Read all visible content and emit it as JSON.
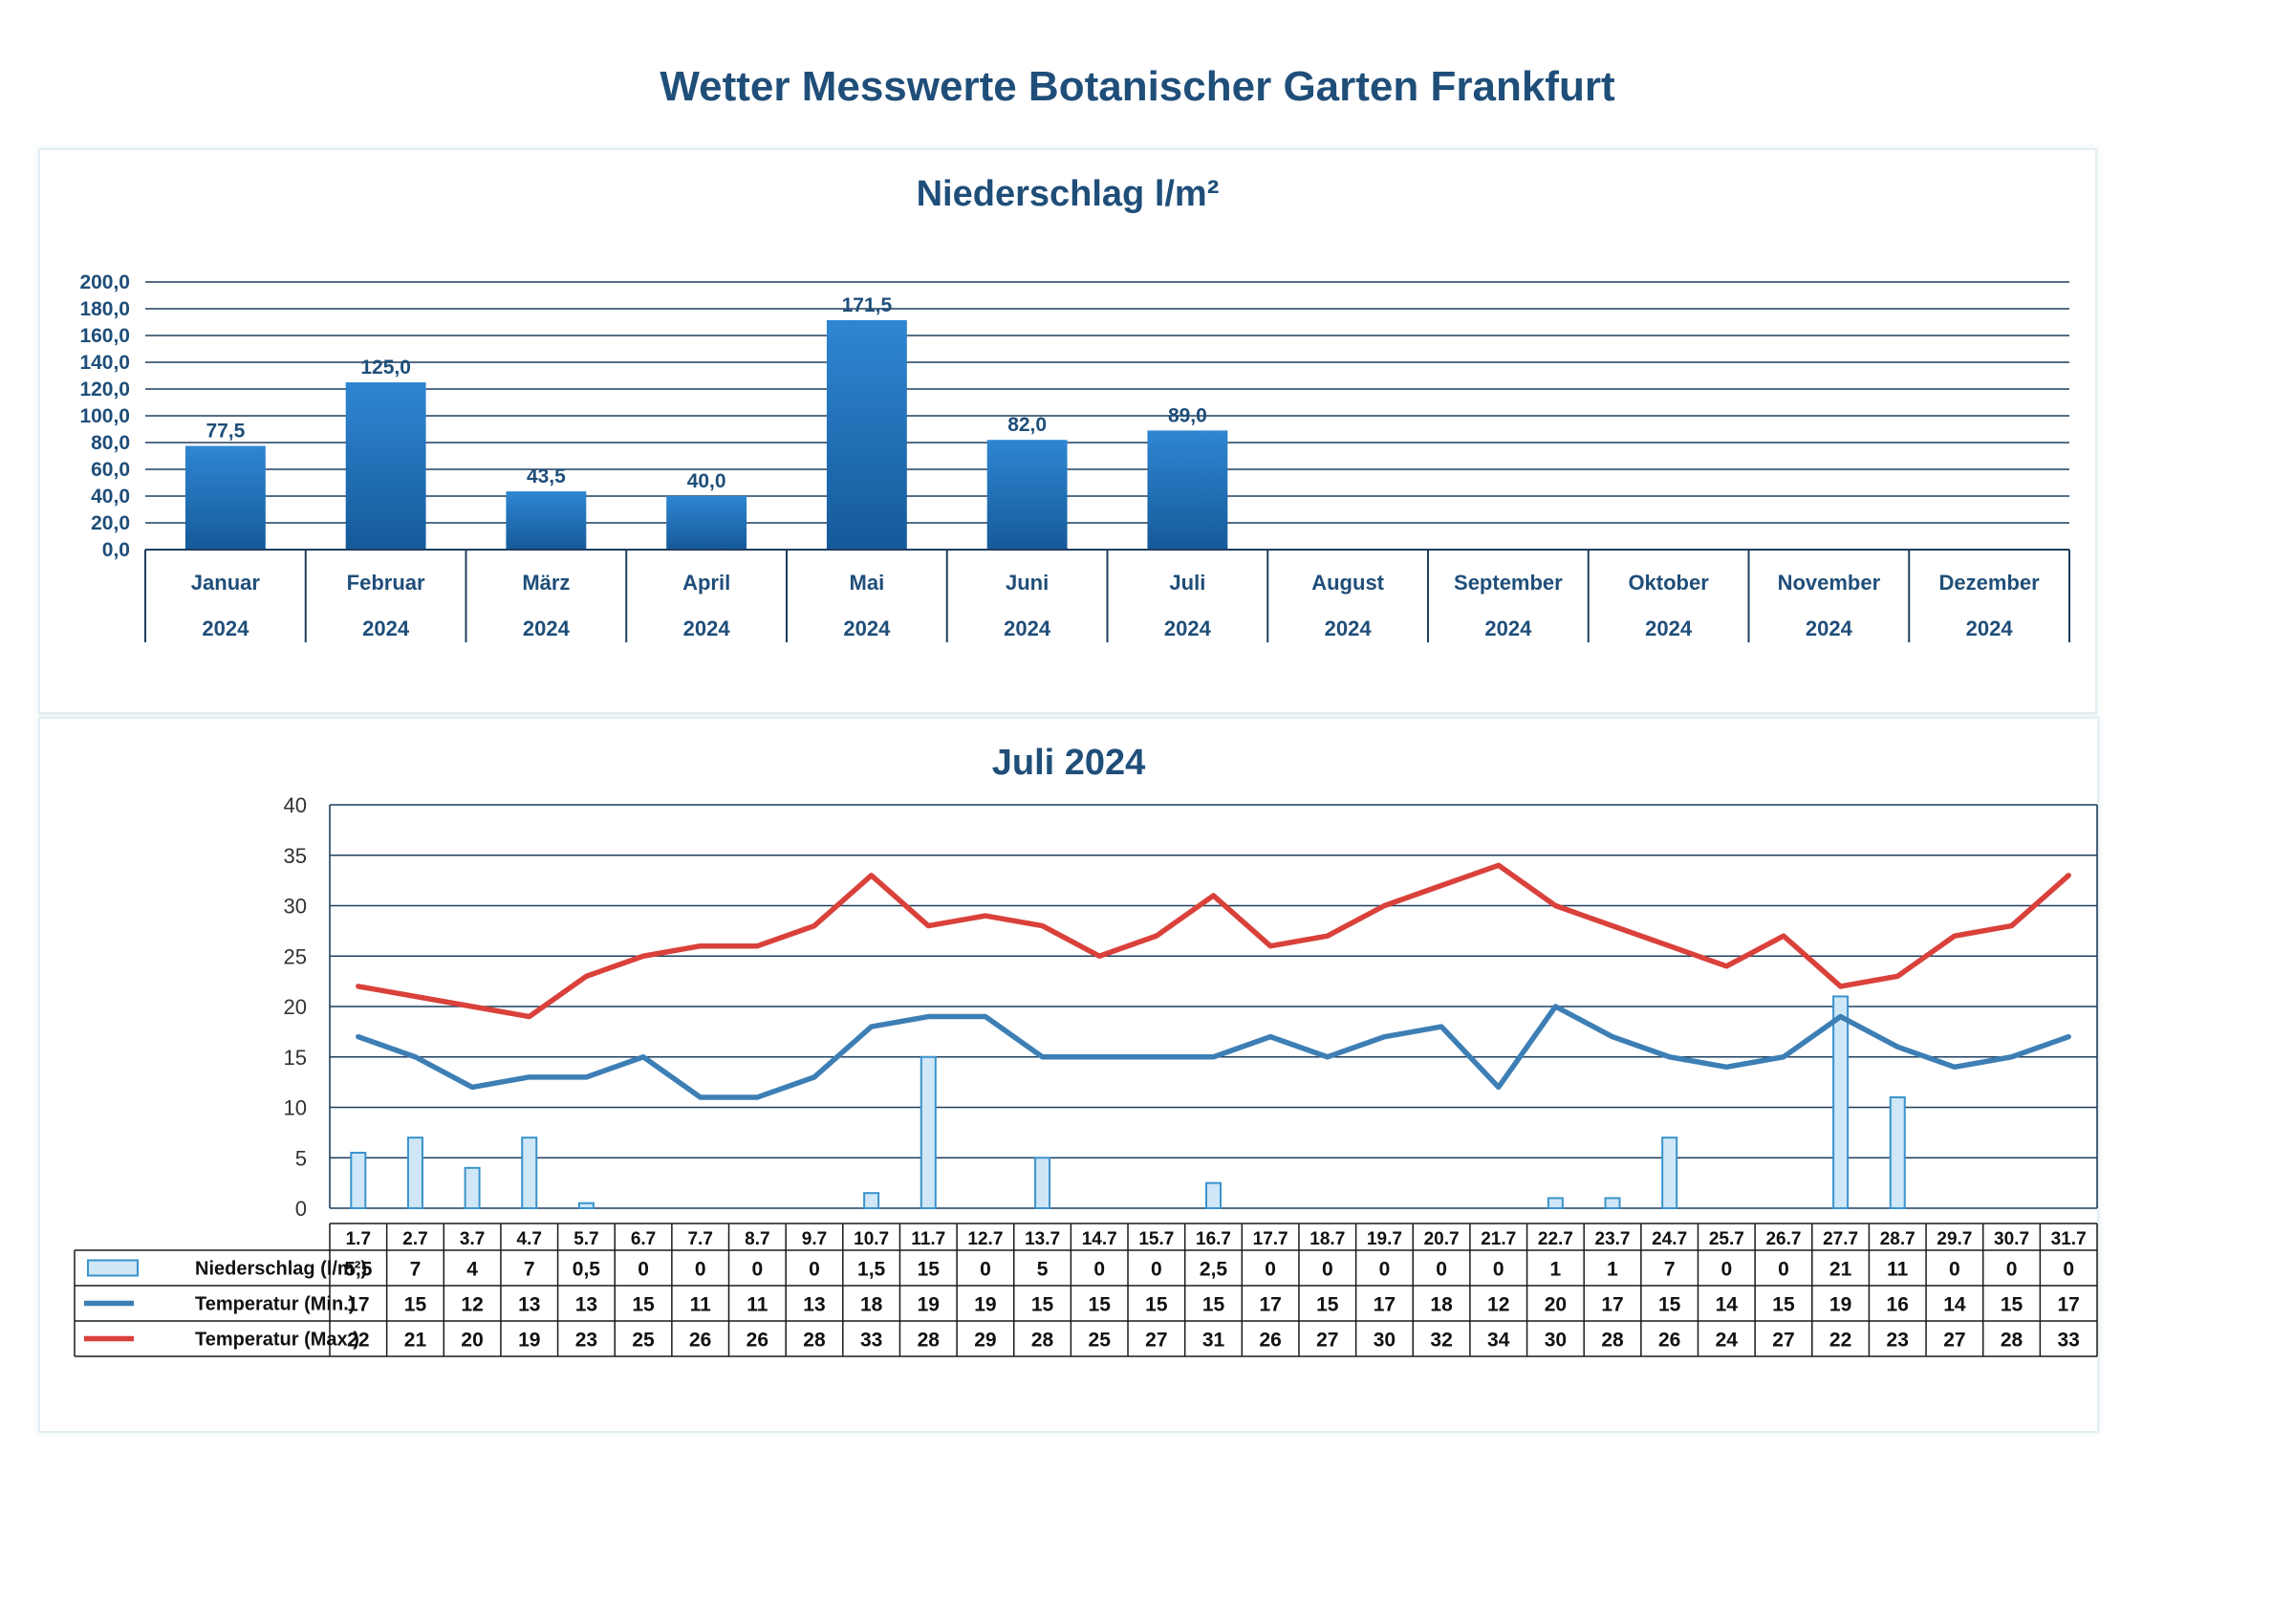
{
  "page": {
    "title": "Wetter Messwerte Botanischer Garten Frankfurt"
  },
  "colors": {
    "title": "#1f4e79",
    "bar_top": "#2f86d2",
    "bar_bottom": "#155a9a",
    "gridline": "#1f3f5f",
    "rain_fill": "#cfe7f7",
    "rain_stroke": "#3a93cc",
    "min_line": "#3d7fb5",
    "max_line": "#d9413a"
  },
  "chart_data": [
    {
      "type": "bar",
      "title": "Niederschlag l/m²",
      "categories": [
        "Januar",
        "Februar",
        "März",
        "April",
        "Mai",
        "Juni",
        "Juli",
        "August",
        "September",
        "Oktober",
        "November",
        "Dezember"
      ],
      "category_years": [
        "2024",
        "2024",
        "2024",
        "2024",
        "2024",
        "2024",
        "2024",
        "2024",
        "2024",
        "2024",
        "2024",
        "2024"
      ],
      "values": [
        77.5,
        125.0,
        43.5,
        40.0,
        171.5,
        82.0,
        89.0,
        null,
        null,
        null,
        null,
        null
      ],
      "value_labels": [
        "77,5",
        "125,0",
        "43,5",
        "40,0",
        "171,5",
        "82,0",
        "89,0",
        "",
        "",
        "",
        "",
        ""
      ],
      "y_ticks": [
        "0,0",
        "20,0",
        "40,0",
        "60,0",
        "80,0",
        "100,0",
        "120,0",
        "140,0",
        "160,0",
        "180,0",
        "200,0"
      ],
      "ylim": [
        0,
        200
      ],
      "grid": true,
      "legend": "none"
    },
    {
      "type": "line",
      "title": "Juli 2024",
      "categories": [
        "1.7",
        "2.7",
        "3.7",
        "4.7",
        "5.7",
        "6.7",
        "7.7",
        "8.7",
        "9.7",
        "10.7",
        "11.7",
        "12.7",
        "13.7",
        "14.7",
        "15.7",
        "16.7",
        "17.7",
        "18.7",
        "19.7",
        "20.7",
        "21.7",
        "22.7",
        "23.7",
        "24.7",
        "25.7",
        "26.7",
        "27.7",
        "28.7",
        "29.7",
        "30.7",
        "31.7"
      ],
      "series": [
        {
          "name": "Niederschlag (l/m²)",
          "type": "bar",
          "values": [
            5.5,
            7,
            4,
            7,
            0.5,
            0,
            0,
            0,
            0,
            1.5,
            15,
            0,
            5,
            0,
            0,
            2.5,
            0,
            0,
            0,
            0,
            0,
            1,
            1,
            7,
            0,
            0,
            21,
            11,
            0,
            0,
            0
          ],
          "labels": [
            "5,5",
            "7",
            "4",
            "7",
            "0,5",
            "0",
            "0",
            "0",
            "0",
            "1,5",
            "15",
            "0",
            "5",
            "0",
            "0",
            "2,5",
            "0",
            "0",
            "0",
            "0",
            "0",
            "1",
            "1",
            "7",
            "0",
            "0",
            "21",
            "11",
            "0",
            "0",
            "0"
          ]
        },
        {
          "name": "Temperatur (Min.)",
          "type": "line",
          "values": [
            17,
            15,
            12,
            13,
            13,
            15,
            11,
            11,
            13,
            18,
            19,
            19,
            15,
            15,
            15,
            15,
            17,
            15,
            17,
            18,
            12,
            20,
            17,
            15,
            14,
            15,
            19,
            16,
            14,
            15,
            17
          ]
        },
        {
          "name": "Temperatur (Max.)",
          "type": "line",
          "values": [
            22,
            21,
            20,
            19,
            23,
            25,
            26,
            26,
            28,
            33,
            28,
            29,
            28,
            25,
            27,
            31,
            26,
            27,
            30,
            32,
            34,
            30,
            28,
            26,
            24,
            27,
            22,
            23,
            27,
            28,
            33
          ]
        }
      ],
      "y_ticks": [
        "0",
        "5",
        "10",
        "15",
        "20",
        "25",
        "30",
        "35",
        "40"
      ],
      "ylim": [
        0,
        40
      ],
      "grid": true,
      "legend": "data-table-below"
    }
  ]
}
